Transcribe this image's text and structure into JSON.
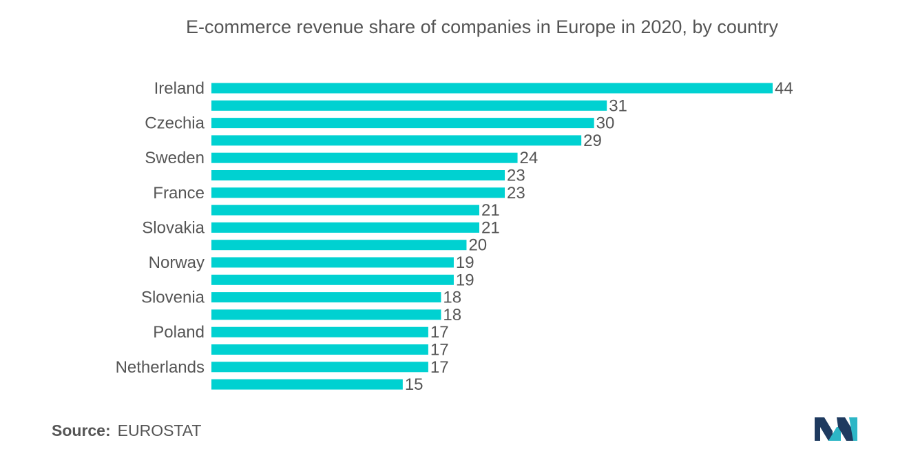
{
  "title": "E-commerce revenue share of companies in Europe in 2020, by country",
  "chart_data": {
    "type": "bar",
    "orientation": "horizontal",
    "title": "E-commerce revenue share of companies in Europe in 2020, by country",
    "xlabel": "",
    "ylabel": "",
    "categories": [
      "Ireland",
      "",
      "Czechia",
      "",
      "Sweden",
      "",
      "France",
      "",
      "Slovakia",
      "",
      "Norway",
      "",
      "Slovenia",
      "",
      "Poland",
      "",
      "Netherlands",
      ""
    ],
    "values": [
      44,
      31,
      30,
      29,
      24,
      23,
      23,
      21,
      21,
      20,
      19,
      19,
      18,
      18,
      17,
      17,
      17,
      15
    ],
    "xlim": [
      0,
      44
    ],
    "grid": false,
    "legend": "none",
    "bar_color": "#00D1D1",
    "label_color": "#555555"
  },
  "source": {
    "label": "Source:",
    "value": "EUROSTAT"
  },
  "logo": {
    "icon": "mordor-intelligence-logo-icon",
    "colors": [
      "#1E3A5F",
      "#2DB6C6"
    ]
  }
}
